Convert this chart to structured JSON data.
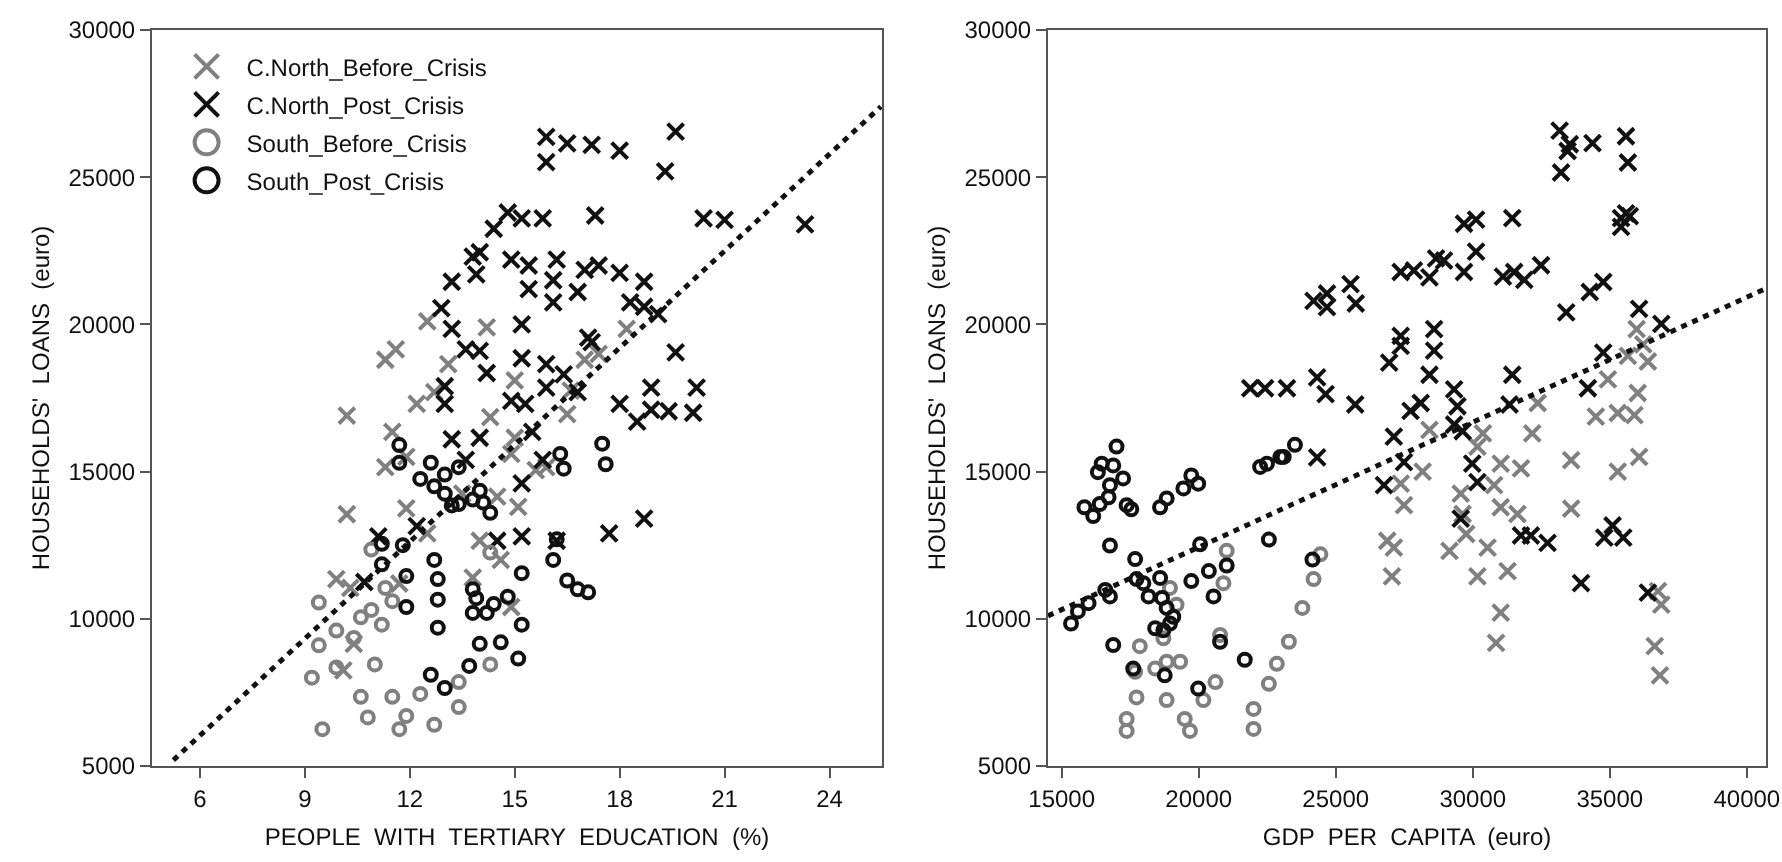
{
  "chart_data": [
    {
      "type": "scatter",
      "xlabel": "PEOPLE  WITH  TERTIARY  EDUCATION  (%)",
      "ylabel": "HOUSEHOLDS'  LOANS  (euro)",
      "xlim": [
        4.63,
        25.5
      ],
      "xticks": [
        6,
        9,
        12,
        15,
        18,
        21,
        24
      ],
      "ylim": [
        5000,
        30000
      ],
      "yticks": [
        5000,
        10000,
        15000,
        20000,
        25000,
        30000
      ],
      "grid": false,
      "legend": "top left",
      "series": [
        {
          "name": "C.North_Before_Crisis",
          "color": "#808080",
          "marker": "cross",
          "x": [
            10.2,
            11.3,
            11.6,
            12.5,
            14.2,
            18.2,
            13.1,
            12.2,
            12.7,
            14.3,
            15.0,
            16.6,
            16.5,
            17.0,
            17.4,
            11.5,
            11.3,
            11.9,
            15.0,
            14.9,
            15.6,
            15.9,
            10.2,
            11.9,
            12.5,
            14.0,
            14.5,
            15.1,
            13.5,
            9.9,
            10.3,
            11.7,
            13.8,
            14.6,
            14.9,
            10.4,
            10.1
          ],
          "values": [
            16900,
            18800,
            19150,
            20100,
            19900,
            19850,
            18650,
            17300,
            17700,
            16850,
            18100,
            17750,
            16950,
            18800,
            19000,
            16350,
            15150,
            15500,
            16150,
            15600,
            15050,
            15150,
            13550,
            13750,
            12900,
            12650,
            14150,
            13800,
            14250,
            11350,
            11050,
            11200,
            11400,
            12000,
            10400,
            9150,
            8250
          ]
        },
        {
          "name": "C.North_Post_Crisis",
          "color": "#111111",
          "marker": "cross",
          "x": [
            15.9,
            15.9,
            16.5,
            17.2,
            18.0,
            19.6,
            19.3,
            14.8,
            15.2,
            15.8,
            17.3,
            14.4,
            20.4,
            21.0,
            23.3,
            13.2,
            14.0,
            13.8,
            13.9,
            14.9,
            15.4,
            16.2,
            15.4,
            16.1,
            16.8,
            16.1,
            17.0,
            17.4,
            18.0,
            18.7,
            18.3,
            18.7,
            19.1,
            12.9,
            13.2,
            13.6,
            14.0,
            15.2,
            15.2,
            15.9,
            16.4,
            17.1,
            17.2,
            19.6,
            13.0,
            13.0,
            14.2,
            14.9,
            15.3,
            15.9,
            16.8,
            18.0,
            18.9,
            18.9,
            19.4,
            20.1,
            20.2,
            18.5,
            15.5,
            13.2,
            14.0,
            15.8,
            13.6,
            15.2,
            12.2,
            11.1,
            14.5,
            15.2,
            16.2,
            17.7,
            18.7,
            10.7
          ],
          "values": [
            26370,
            25510,
            26150,
            26100,
            25900,
            26550,
            25200,
            23800,
            23600,
            23600,
            23700,
            23250,
            23600,
            23550,
            23400,
            21450,
            22450,
            22300,
            21700,
            22200,
            22000,
            22200,
            21200,
            21500,
            21100,
            20750,
            21850,
            22000,
            21750,
            21450,
            20750,
            20600,
            20350,
            20550,
            19850,
            19150,
            19100,
            20000,
            18850,
            18650,
            18300,
            19550,
            19400,
            19050,
            17900,
            17300,
            18350,
            17400,
            17300,
            17850,
            17700,
            17300,
            17850,
            17100,
            17050,
            17000,
            17850,
            16700,
            16350,
            16100,
            16150,
            15400,
            15400,
            14600,
            13150,
            12800,
            12650,
            12800,
            12650,
            12900,
            13400,
            11250
          ]
        },
        {
          "name": "South_Before_Crisis",
          "color": "#808080",
          "marker": "circle",
          "x": [
            9.4,
            9.4,
            9.2,
            9.9,
            9.9,
            10.4,
            10.6,
            10.9,
            11.2,
            11.0,
            10.6,
            11.5,
            10.8,
            9.5,
            11.7,
            11.9,
            12.7,
            12.3,
            13.4,
            10.9,
            11.3,
            11.5,
            14.3,
            14.3,
            13.4
          ],
          "values": [
            10550,
            9100,
            8000,
            9600,
            8350,
            9350,
            10050,
            10300,
            9800,
            8450,
            7350,
            7350,
            6650,
            6250,
            6250,
            6700,
            6400,
            7450,
            7000,
            12350,
            11050,
            10600,
            12250,
            8450,
            7850
          ]
        },
        {
          "name": "South_Post_Crisis",
          "color": "#111111",
          "marker": "circle",
          "x": [
            11.7,
            11.7,
            12.6,
            12.3,
            12.7,
            13.0,
            13.0,
            13.4,
            13.4,
            13.2,
            13.8,
            14.0,
            14.1,
            14.3,
            16.3,
            16.4,
            17.5,
            17.6,
            11.2,
            11.2,
            11.8,
            12.7,
            12.8,
            11.9,
            11.9,
            12.8,
            12.8,
            13.8,
            13.9,
            13.8,
            14.2,
            14.4,
            14.8,
            15.2,
            15.2,
            16.1,
            16.5,
            16.8,
            17.1,
            14.0,
            14.6,
            15.1,
            13.7,
            12.6,
            13.0,
            16.2
          ],
          "values": [
            15900,
            15300,
            15300,
            14750,
            14500,
            14250,
            14900,
            15150,
            13900,
            13850,
            14050,
            14350,
            13950,
            13600,
            15600,
            15100,
            15950,
            15250,
            12550,
            11850,
            12500,
            12000,
            11350,
            11450,
            10400,
            10650,
            9700,
            11000,
            10700,
            10200,
            10200,
            10500,
            10750,
            11550,
            9800,
            12000,
            11300,
            11000,
            10900,
            9150,
            9200,
            8650,
            8400,
            8100,
            7650,
            12700
          ]
        },
        {
          "type": "line",
          "color": "#111111",
          "line_style": "dotted",
          "x": [
            5.24,
            25.47
          ],
          "values": [
            5200,
            27400
          ]
        }
      ]
    },
    {
      "type": "scatter",
      "xlabel": "GDP  PER  CAPITA  (euro)",
      "ylabel": "HOUSEHOLDS'  LOANS  (euro)",
      "xlim": [
        14500,
        40700
      ],
      "xticks": [
        15000,
        20000,
        25000,
        30000,
        35000,
        40000
      ],
      "ylim": [
        5000,
        30000
      ],
      "yticks": [
        5000,
        10000,
        15000,
        20000,
        25000,
        30000
      ],
      "grid": false,
      "legend": false,
      "series": [
        {
          "color": "#808080",
          "marker": "cross",
          "x": [
            35980,
            36220,
            36390,
            35660,
            34930,
            36020,
            35290,
            35900,
            34490,
            32370,
            32170,
            30370,
            30170,
            28420,
            28170,
            36070,
            35290,
            33590,
            33590,
            31760,
            31020,
            30780,
            31020,
            31630,
            29560,
            29630,
            29760,
            29150,
            30540,
            31270,
            30170,
            27370,
            27490,
            26880,
            27120,
            27050,
            31020,
            30850,
            36760,
            36880,
            36640,
            36830
          ],
          "values": [
            19840,
            19320,
            18740,
            18930,
            18130,
            17670,
            16990,
            16920,
            16870,
            17330,
            16300,
            16300,
            15850,
            16420,
            15000,
            15500,
            15000,
            15390,
            13740,
            15110,
            15270,
            14540,
            13790,
            13560,
            14250,
            13560,
            12880,
            12310,
            12420,
            11620,
            11440,
            14590,
            13860,
            12650,
            12420,
            11440,
            10210,
            9180,
            10940,
            10480,
            9070,
            8080
          ]
        },
        {
          "color": "#111111",
          "marker": "cross",
          "x": [
            33170,
            33540,
            33460,
            33220,
            34370,
            35590,
            35660,
            35410,
            35590,
            35730,
            35410,
            31440,
            29680,
            30120,
            30120,
            29680,
            32490,
            31100,
            31510,
            31880,
            28660,
            28420,
            28950,
            27370,
            27850,
            34270,
            34760,
            33410,
            36070,
            36880,
            25540,
            25730,
            24680,
            24190,
            24680,
            21880,
            22420,
            23220,
            24320,
            24630,
            25710,
            26950,
            27370,
            27370,
            28590,
            28590,
            28420,
            28100,
            27730,
            27120,
            27490,
            26760,
            24320,
            29320,
            29440,
            29320,
            29630,
            31440,
            31340,
            34200,
            34760,
            29980,
            30170,
            29560,
            31760,
            32120,
            32730,
            35100,
            35490,
            34800,
            33950,
            36390
          ],
          "values": [
            26580,
            26120,
            25890,
            25160,
            26160,
            26390,
            25500,
            23610,
            23770,
            23680,
            23310,
            23610,
            23420,
            23560,
            22470,
            21780,
            22010,
            21620,
            21780,
            21510,
            22240,
            21600,
            22170,
            21780,
            21830,
            21100,
            21440,
            20410,
            20530,
            20020,
            21370,
            20710,
            21050,
            20800,
            20590,
            17830,
            17830,
            17830,
            18200,
            17630,
            17280,
            18700,
            19610,
            19270,
            19840,
            19110,
            18290,
            17330,
            17060,
            16190,
            15320,
            14540,
            15480,
            17790,
            17220,
            16600,
            16370,
            18290,
            17280,
            17830,
            19040,
            15270,
            14640,
            13400,
            12830,
            12830,
            12580,
            13170,
            12760,
            12760,
            11210,
            10890
          ]
        },
        {
          "color": "#808080",
          "marker": "circle",
          "x": [
            17370,
            17370,
            17850,
            17680,
            17730,
            18410,
            18710,
            18830,
            18830,
            18950,
            19190,
            19320,
            19490,
            19680,
            20170,
            20610,
            20780,
            20900,
            21020,
            22000,
            22000,
            22560,
            22850,
            23290,
            23780,
            24190,
            24440
          ],
          "values": [
            6600,
            6190,
            9070,
            8200,
            7330,
            8310,
            9340,
            8540,
            7240,
            11050,
            10480,
            8540,
            6600,
            6190,
            7240,
            7850,
            9450,
            11210,
            12310,
            6940,
            6260,
            7790,
            8470,
            9220,
            10370,
            11350,
            12190
          ]
        },
        {
          "color": "#111111",
          "marker": "circle",
          "x": [
            15340,
            15590,
            15980,
            15830,
            16150,
            16320,
            16460,
            16880,
            17000,
            16390,
            16710,
            16760,
            17240,
            17370,
            17540,
            16760,
            16760,
            16590,
            16880,
            17610,
            17680,
            17730,
            17980,
            18170,
            18590,
            18660,
            18830,
            18710,
            18410,
            18950,
            19070,
            18590,
            18830,
            19440,
            19730,
            19980,
            20050,
            19730,
            20370,
            20540,
            21020,
            20780,
            21680,
            19980,
            18760,
            22240,
            22490,
            22980,
            23100,
            23510,
            22560,
            24150
          ],
          "values": [
            9840,
            10250,
            10530,
            13790,
            13490,
            14980,
            15270,
            15210,
            15850,
            13900,
            14130,
            14540,
            14770,
            13860,
            13720,
            12490,
            10760,
            10980,
            9110,
            8310,
            12030,
            11350,
            11210,
            10760,
            11390,
            10710,
            10370,
            9610,
            9680,
            9840,
            10070,
            13790,
            14090,
            14430,
            14870,
            14590,
            12530,
            11280,
            11620,
            10760,
            11810,
            9220,
            8610,
            7630,
            8080,
            15160,
            15270,
            15500,
            15500,
            15910,
            12690,
            12010
          ]
        },
        {
          "type": "line",
          "color": "#111111",
          "line_style": "dotted",
          "x": [
            14500,
            40650
          ],
          "values": [
            10100,
            21200
          ]
        }
      ]
    }
  ]
}
